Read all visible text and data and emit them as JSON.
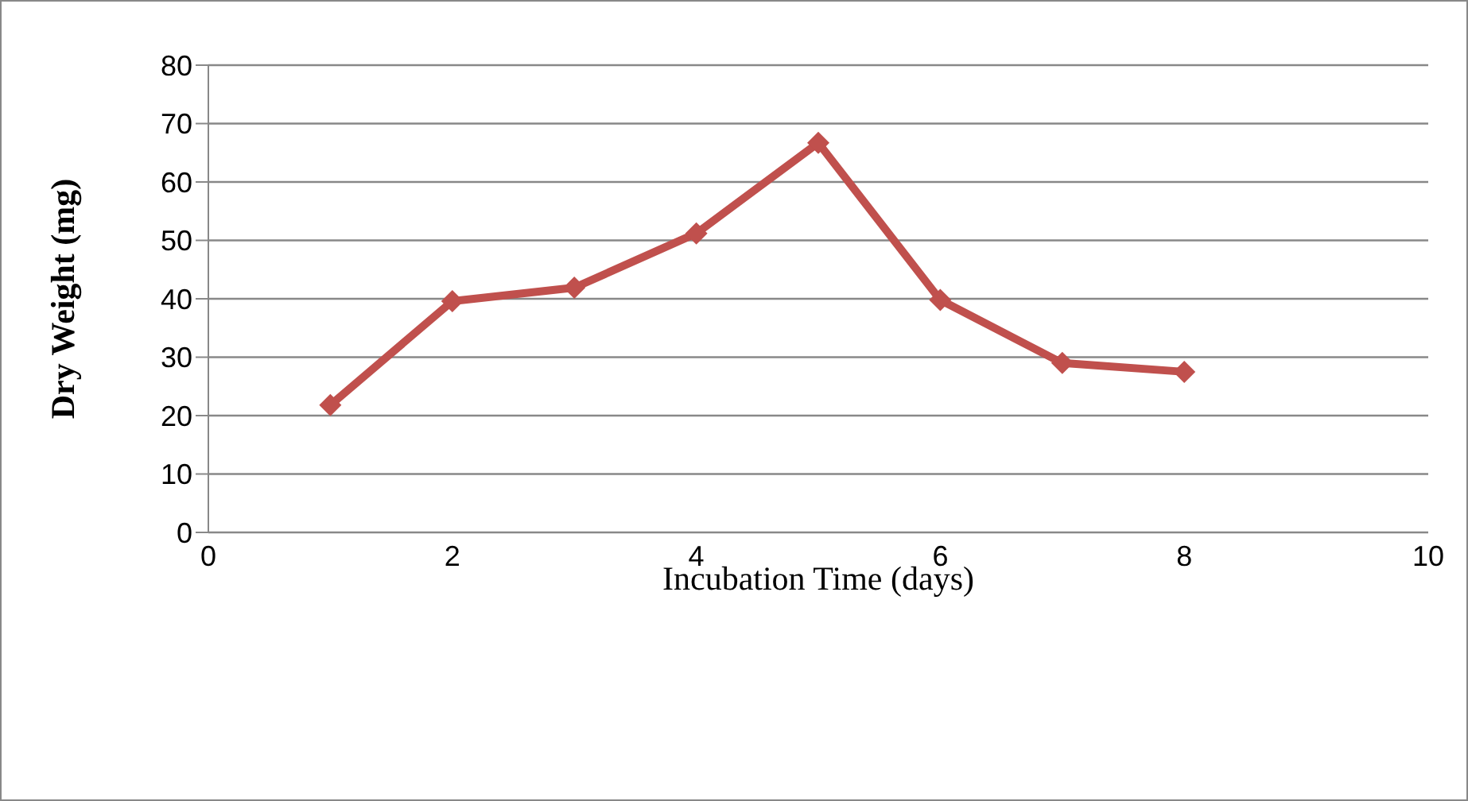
{
  "chart_data": {
    "type": "line",
    "xlabel": "Incubation Time (days)",
    "ylabel": "Dry Weight (mg)",
    "x": [
      1,
      2,
      3,
      4,
      5,
      6,
      7,
      8
    ],
    "series": [
      {
        "color": "#c0504d",
        "values": [
          21.8,
          39.6,
          41.9,
          51.2,
          66.7,
          39.8,
          29.0,
          27.5
        ]
      }
    ],
    "xlim": [
      0,
      10
    ],
    "xticks": [
      0,
      2,
      4,
      6,
      8,
      10
    ],
    "ylim": [
      0,
      80
    ],
    "yticks": [
      0,
      10,
      20,
      30,
      40,
      50,
      60,
      70,
      80
    ],
    "grid": "y",
    "legend": false,
    "marker": "diamond",
    "line_style": "solid"
  }
}
